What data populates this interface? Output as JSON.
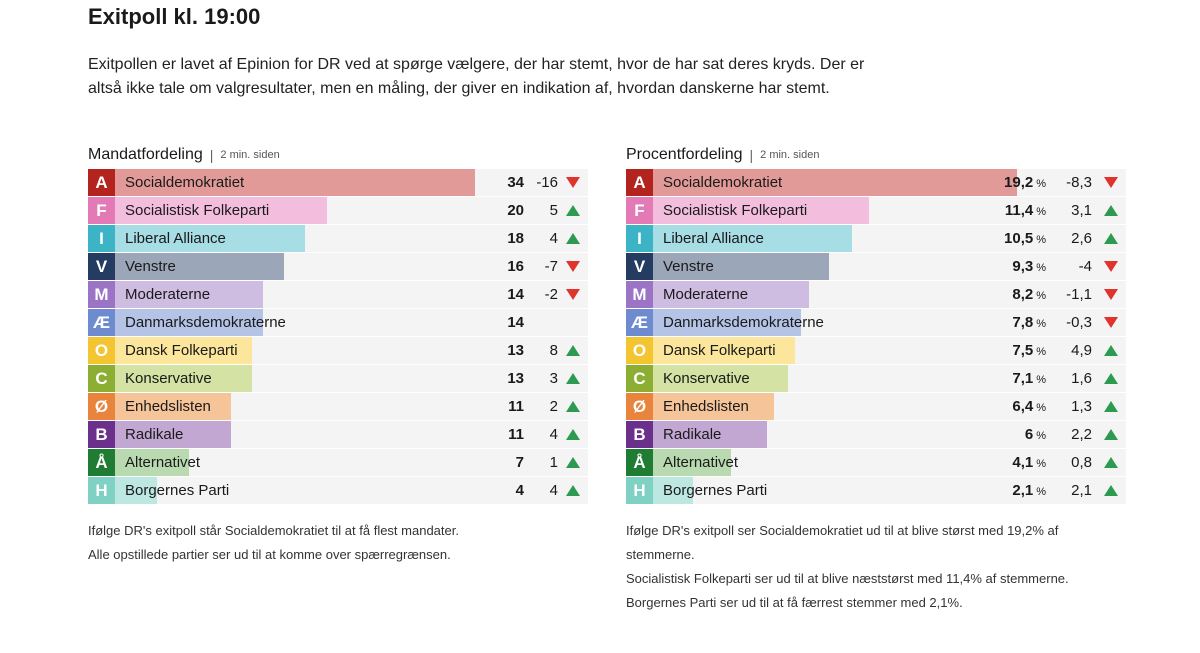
{
  "title": "Exitpoll kl. 19:00",
  "intro": "Exitpollen er lavet af Epinion for DR ved at spørge vælgere, der har stemt, hvor de har sat deres kryds. Der er altså ikke tale om valgresultater, men en måling, der giver en indikation af, hvordan danskerne har stemt.",
  "colors": {
    "up": "#2e9a4f",
    "down": "#e0332c",
    "row_bg": "#f4f4f4"
  },
  "chart_data": [
    {
      "type": "bar",
      "orientation": "horizontal",
      "title": "Mandatfordeling",
      "timestamp": "2 min. siden",
      "unit": "",
      "max": 40,
      "parties": [
        {
          "letter": "A",
          "name": "Socialdemokratiet",
          "value": "34",
          "num": 34,
          "change": "-16",
          "dir": "down",
          "color": "#e19a98",
          "badge": "#b4241f"
        },
        {
          "letter": "F",
          "name": "Socialistisk Folkeparti",
          "value": "20",
          "num": 20,
          "change": "5",
          "dir": "up",
          "color": "#f3bede",
          "badge": "#e47ab5"
        },
        {
          "letter": "I",
          "name": "Liberal Alliance",
          "value": "18",
          "num": 18,
          "change": "4",
          "dir": "up",
          "color": "#a7dde5",
          "badge": "#3cb4c6"
        },
        {
          "letter": "V",
          "name": "Venstre",
          "value": "16",
          "num": 16,
          "change": "-7",
          "dir": "down",
          "color": "#9ba6b8",
          "badge": "#243b62"
        },
        {
          "letter": "M",
          "name": "Moderaterne",
          "value": "14",
          "num": 14,
          "change": "-2",
          "dir": "down",
          "color": "#cfbce1",
          "badge": "#9b74c5"
        },
        {
          "letter": "Æ",
          "name": "Danmarksdemokraterne",
          "value": "14",
          "num": 14,
          "change": "",
          "dir": "",
          "color": "#b4c3e6",
          "badge": "#6e8bd0"
        },
        {
          "letter": "O",
          "name": "Dansk Folkeparti",
          "value": "13",
          "num": 13,
          "change": "8",
          "dir": "up",
          "color": "#fbe69c",
          "badge": "#f3c531"
        },
        {
          "letter": "C",
          "name": "Konservative",
          "value": "13",
          "num": 13,
          "change": "3",
          "dir": "up",
          "color": "#d4e2a3",
          "badge": "#8bae33"
        },
        {
          "letter": "Ø",
          "name": "Enhedslisten",
          "value": "11",
          "num": 11,
          "change": "2",
          "dir": "up",
          "color": "#f5c499",
          "badge": "#e8843c"
        },
        {
          "letter": "B",
          "name": "Radikale",
          "value": "11",
          "num": 11,
          "change": "4",
          "dir": "up",
          "color": "#c3a7d3",
          "badge": "#6b2f8c"
        },
        {
          "letter": "Å",
          "name": "Alternativet",
          "value": "7",
          "num": 7,
          "change": "1",
          "dir": "up",
          "color": "#b9dab0",
          "badge": "#1e7c33"
        },
        {
          "letter": "H",
          "name": "Borgernes Parti",
          "value": "4",
          "num": 4,
          "change": "4",
          "dir": "up",
          "color": "#bde8e1",
          "badge": "#7ed1c3"
        }
      ],
      "notes": [
        "Ifølge DR's exitpoll står Socialdemokratiet til at få flest mandater.",
        "Alle opstillede partier ser ud til at komme over spærregrænsen."
      ]
    },
    {
      "type": "bar",
      "orientation": "horizontal",
      "title": "Procentfordeling",
      "timestamp": "2 min. siden",
      "unit": "%",
      "max": 22.3,
      "parties": [
        {
          "letter": "A",
          "name": "Socialdemokratiet",
          "value": "19,2",
          "num": 19.2,
          "change": "-8,3",
          "dir": "down",
          "color": "#e19a98",
          "badge": "#b4241f"
        },
        {
          "letter": "F",
          "name": "Socialistisk Folkeparti",
          "value": "11,4",
          "num": 11.4,
          "change": "3,1",
          "dir": "up",
          "color": "#f3bede",
          "badge": "#e47ab5"
        },
        {
          "letter": "I",
          "name": "Liberal Alliance",
          "value": "10,5",
          "num": 10.5,
          "change": "2,6",
          "dir": "up",
          "color": "#a7dde5",
          "badge": "#3cb4c6"
        },
        {
          "letter": "V",
          "name": "Venstre",
          "value": "9,3",
          "num": 9.3,
          "change": "-4",
          "dir": "down",
          "color": "#9ba6b8",
          "badge": "#243b62"
        },
        {
          "letter": "M",
          "name": "Moderaterne",
          "value": "8,2",
          "num": 8.2,
          "change": "-1,1",
          "dir": "down",
          "color": "#cfbce1",
          "badge": "#9b74c5"
        },
        {
          "letter": "Æ",
          "name": "Danmarksdemokraterne",
          "value": "7,8",
          "num": 7.8,
          "change": "-0,3",
          "dir": "down",
          "color": "#b4c3e6",
          "badge": "#6e8bd0"
        },
        {
          "letter": "O",
          "name": "Dansk Folkeparti",
          "value": "7,5",
          "num": 7.5,
          "change": "4,9",
          "dir": "up",
          "color": "#fbe69c",
          "badge": "#f3c531"
        },
        {
          "letter": "C",
          "name": "Konservative",
          "value": "7,1",
          "num": 7.1,
          "change": "1,6",
          "dir": "up",
          "color": "#d4e2a3",
          "badge": "#8bae33"
        },
        {
          "letter": "Ø",
          "name": "Enhedslisten",
          "value": "6,4",
          "num": 6.4,
          "change": "1,3",
          "dir": "up",
          "color": "#f5c499",
          "badge": "#e8843c"
        },
        {
          "letter": "B",
          "name": "Radikale",
          "value": "6",
          "num": 6.0,
          "change": "2,2",
          "dir": "up",
          "color": "#c3a7d3",
          "badge": "#6b2f8c"
        },
        {
          "letter": "Å",
          "name": "Alternativet",
          "value": "4,1",
          "num": 4.1,
          "change": "0,8",
          "dir": "up",
          "color": "#b9dab0",
          "badge": "#1e7c33"
        },
        {
          "letter": "H",
          "name": "Borgernes Parti",
          "value": "2,1",
          "num": 2.1,
          "change": "2,1",
          "dir": "up",
          "color": "#bde8e1",
          "badge": "#7ed1c3"
        }
      ],
      "notes": [
        "Ifølge DR's exitpoll ser Socialdemokratiet ud til at blive størst med 19,2% af stemmerne.",
        "Socialistisk Folkeparti ser ud til at blive næststørst med 11,4% af stemmerne.",
        "Borgernes Parti ser ud til at få færrest stemmer med 2,1%."
      ]
    }
  ]
}
